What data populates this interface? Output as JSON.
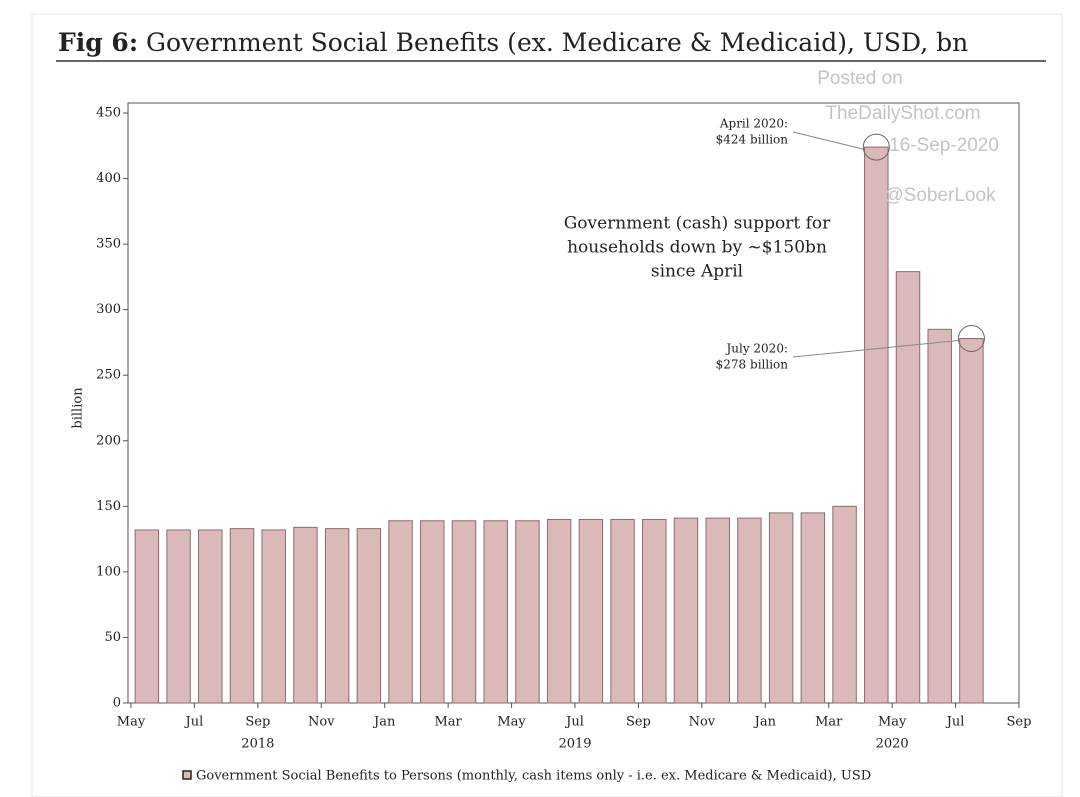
{
  "chart_data": {
    "type": "bar",
    "title_prefix": "Fig 6:",
    "title": "Government Social Benefits (ex. Medicare & Medicaid), USD, bn",
    "ylabel": "billion",
    "x": [
      "2018-05",
      "2018-06",
      "2018-07",
      "2018-08",
      "2018-09",
      "2018-10",
      "2018-11",
      "2018-12",
      "2019-01",
      "2019-02",
      "2019-03",
      "2019-04",
      "2019-05",
      "2019-06",
      "2019-07",
      "2019-08",
      "2019-09",
      "2019-10",
      "2019-11",
      "2019-12",
      "2020-01",
      "2020-02",
      "2020-03",
      "2020-04",
      "2020-05",
      "2020-06",
      "2020-07"
    ],
    "values": [
      132,
      132,
      132,
      133,
      132,
      134,
      133,
      133,
      139,
      139,
      139,
      139,
      139,
      140,
      140,
      140,
      140,
      141,
      141,
      141,
      145,
      145,
      150,
      424,
      329,
      285,
      278
    ],
    "color": "#dcb9b9",
    "xlim": [
      "2018-05",
      "2020-09"
    ],
    "xticks": [
      {
        "value": "2018-05",
        "label": "May"
      },
      {
        "value": "2018-07",
        "label": "Jul"
      },
      {
        "value": "2018-09",
        "label": "Sep"
      },
      {
        "value": "2018-11",
        "label": "Nov"
      },
      {
        "value": "2019-01",
        "label": "Jan"
      },
      {
        "value": "2019-03",
        "label": "Mar"
      },
      {
        "value": "2019-05",
        "label": "May"
      },
      {
        "value": "2019-07",
        "label": "Jul"
      },
      {
        "value": "2019-09",
        "label": "Sep"
      },
      {
        "value": "2019-11",
        "label": "Nov"
      },
      {
        "value": "2020-01",
        "label": "Jan"
      },
      {
        "value": "2020-03",
        "label": "Mar"
      },
      {
        "value": "2020-05",
        "label": "May"
      },
      {
        "value": "2020-07",
        "label": "Jul"
      },
      {
        "value": "2020-09",
        "label": "Sep"
      }
    ],
    "xyears": [
      {
        "value": "2018-09",
        "label": "2018"
      },
      {
        "value": "2019-07",
        "label": "2019"
      },
      {
        "value": "2020-05",
        "label": "2020"
      }
    ],
    "ylim": [
      0,
      450
    ],
    "yticks": [
      0,
      50,
      100,
      150,
      200,
      250,
      300,
      350,
      400,
      450
    ],
    "legend": "Government Social Benefits to Persons (monthly, cash items only - i.e. ex. Medicare & Medicaid), USD",
    "annotations": [
      {
        "lines": [
          "April 2020:",
          "$424 billion"
        ],
        "target": 23
      },
      {
        "lines": [
          "July 2020:",
          "$278 billion"
        ],
        "target": 26
      }
    ],
    "note": [
      "Government (cash) support for",
      "households down by ~$150bn",
      "since April"
    ],
    "watermark": [
      "Posted on",
      "TheDailyShot.com",
      "16-Sep-2020",
      "@SoberLook"
    ]
  }
}
